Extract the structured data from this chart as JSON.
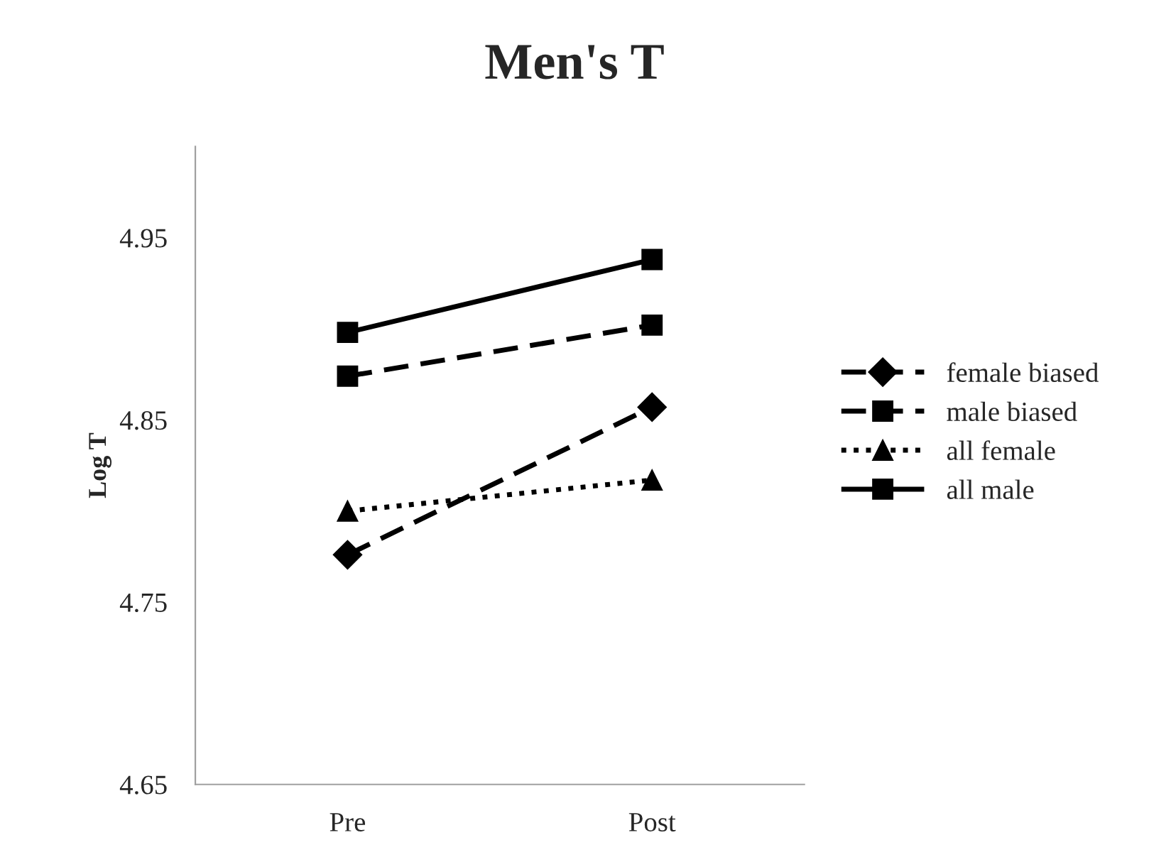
{
  "chart_data": {
    "type": "line",
    "title": "Men's T",
    "ylabel": "Log T",
    "categories": [
      "Pre",
      "Post"
    ],
    "series": [
      {
        "name": "female biased",
        "color": "#000000",
        "values": [
          4.776,
          4.857
        ],
        "marker": "diamond",
        "line_style": "dashed"
      },
      {
        "name": "male biased",
        "color": "#000000",
        "values": [
          4.874,
          4.902
        ],
        "marker": "square",
        "line_style": "dashed"
      },
      {
        "name": "all female",
        "color": "#000000",
        "values": [
          4.8,
          4.817
        ],
        "marker": "triangle",
        "line_style": "dotted"
      },
      {
        "name": "all male",
        "color": "#000000",
        "values": [
          4.898,
          4.938
        ],
        "marker": "square",
        "line_style": "solid"
      }
    ],
    "ylim": [
      4.65,
      5.0
    ],
    "yticks": [
      4.65,
      4.75,
      4.85,
      4.95
    ],
    "grid": false,
    "legend": "right"
  }
}
